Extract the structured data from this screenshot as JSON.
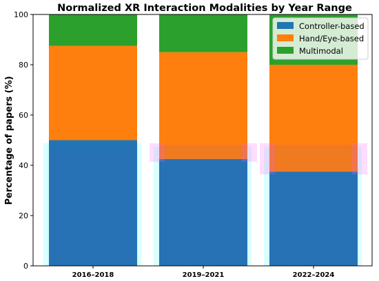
{
  "chart_data": {
    "type": "bar",
    "stacked": true,
    "normalized": true,
    "title": "Normalized XR Interaction Modalities by Year Range",
    "xlabel": "",
    "ylabel": "Percentage of papers (%)",
    "ylim": [
      0,
      100
    ],
    "yticks": [
      "0",
      "20",
      "40",
      "60",
      "80",
      "100"
    ],
    "categories": [
      "2016–2018",
      "2019–2021",
      "2022–2024"
    ],
    "series": [
      {
        "name": "Controller-based",
        "color": "#1f77b4",
        "values": [
          50.0,
          42.5,
          37.5
        ]
      },
      {
        "name": "Hand/Eye-based",
        "color": "#ff7f0e",
        "values": [
          37.5,
          42.5,
          42.5
        ]
      },
      {
        "name": "Multimodal",
        "color": "#2ca02c",
        "values": [
          12.5,
          15.0,
          20.0
        ]
      }
    ],
    "grid": false,
    "legend_position": "top-right"
  }
}
